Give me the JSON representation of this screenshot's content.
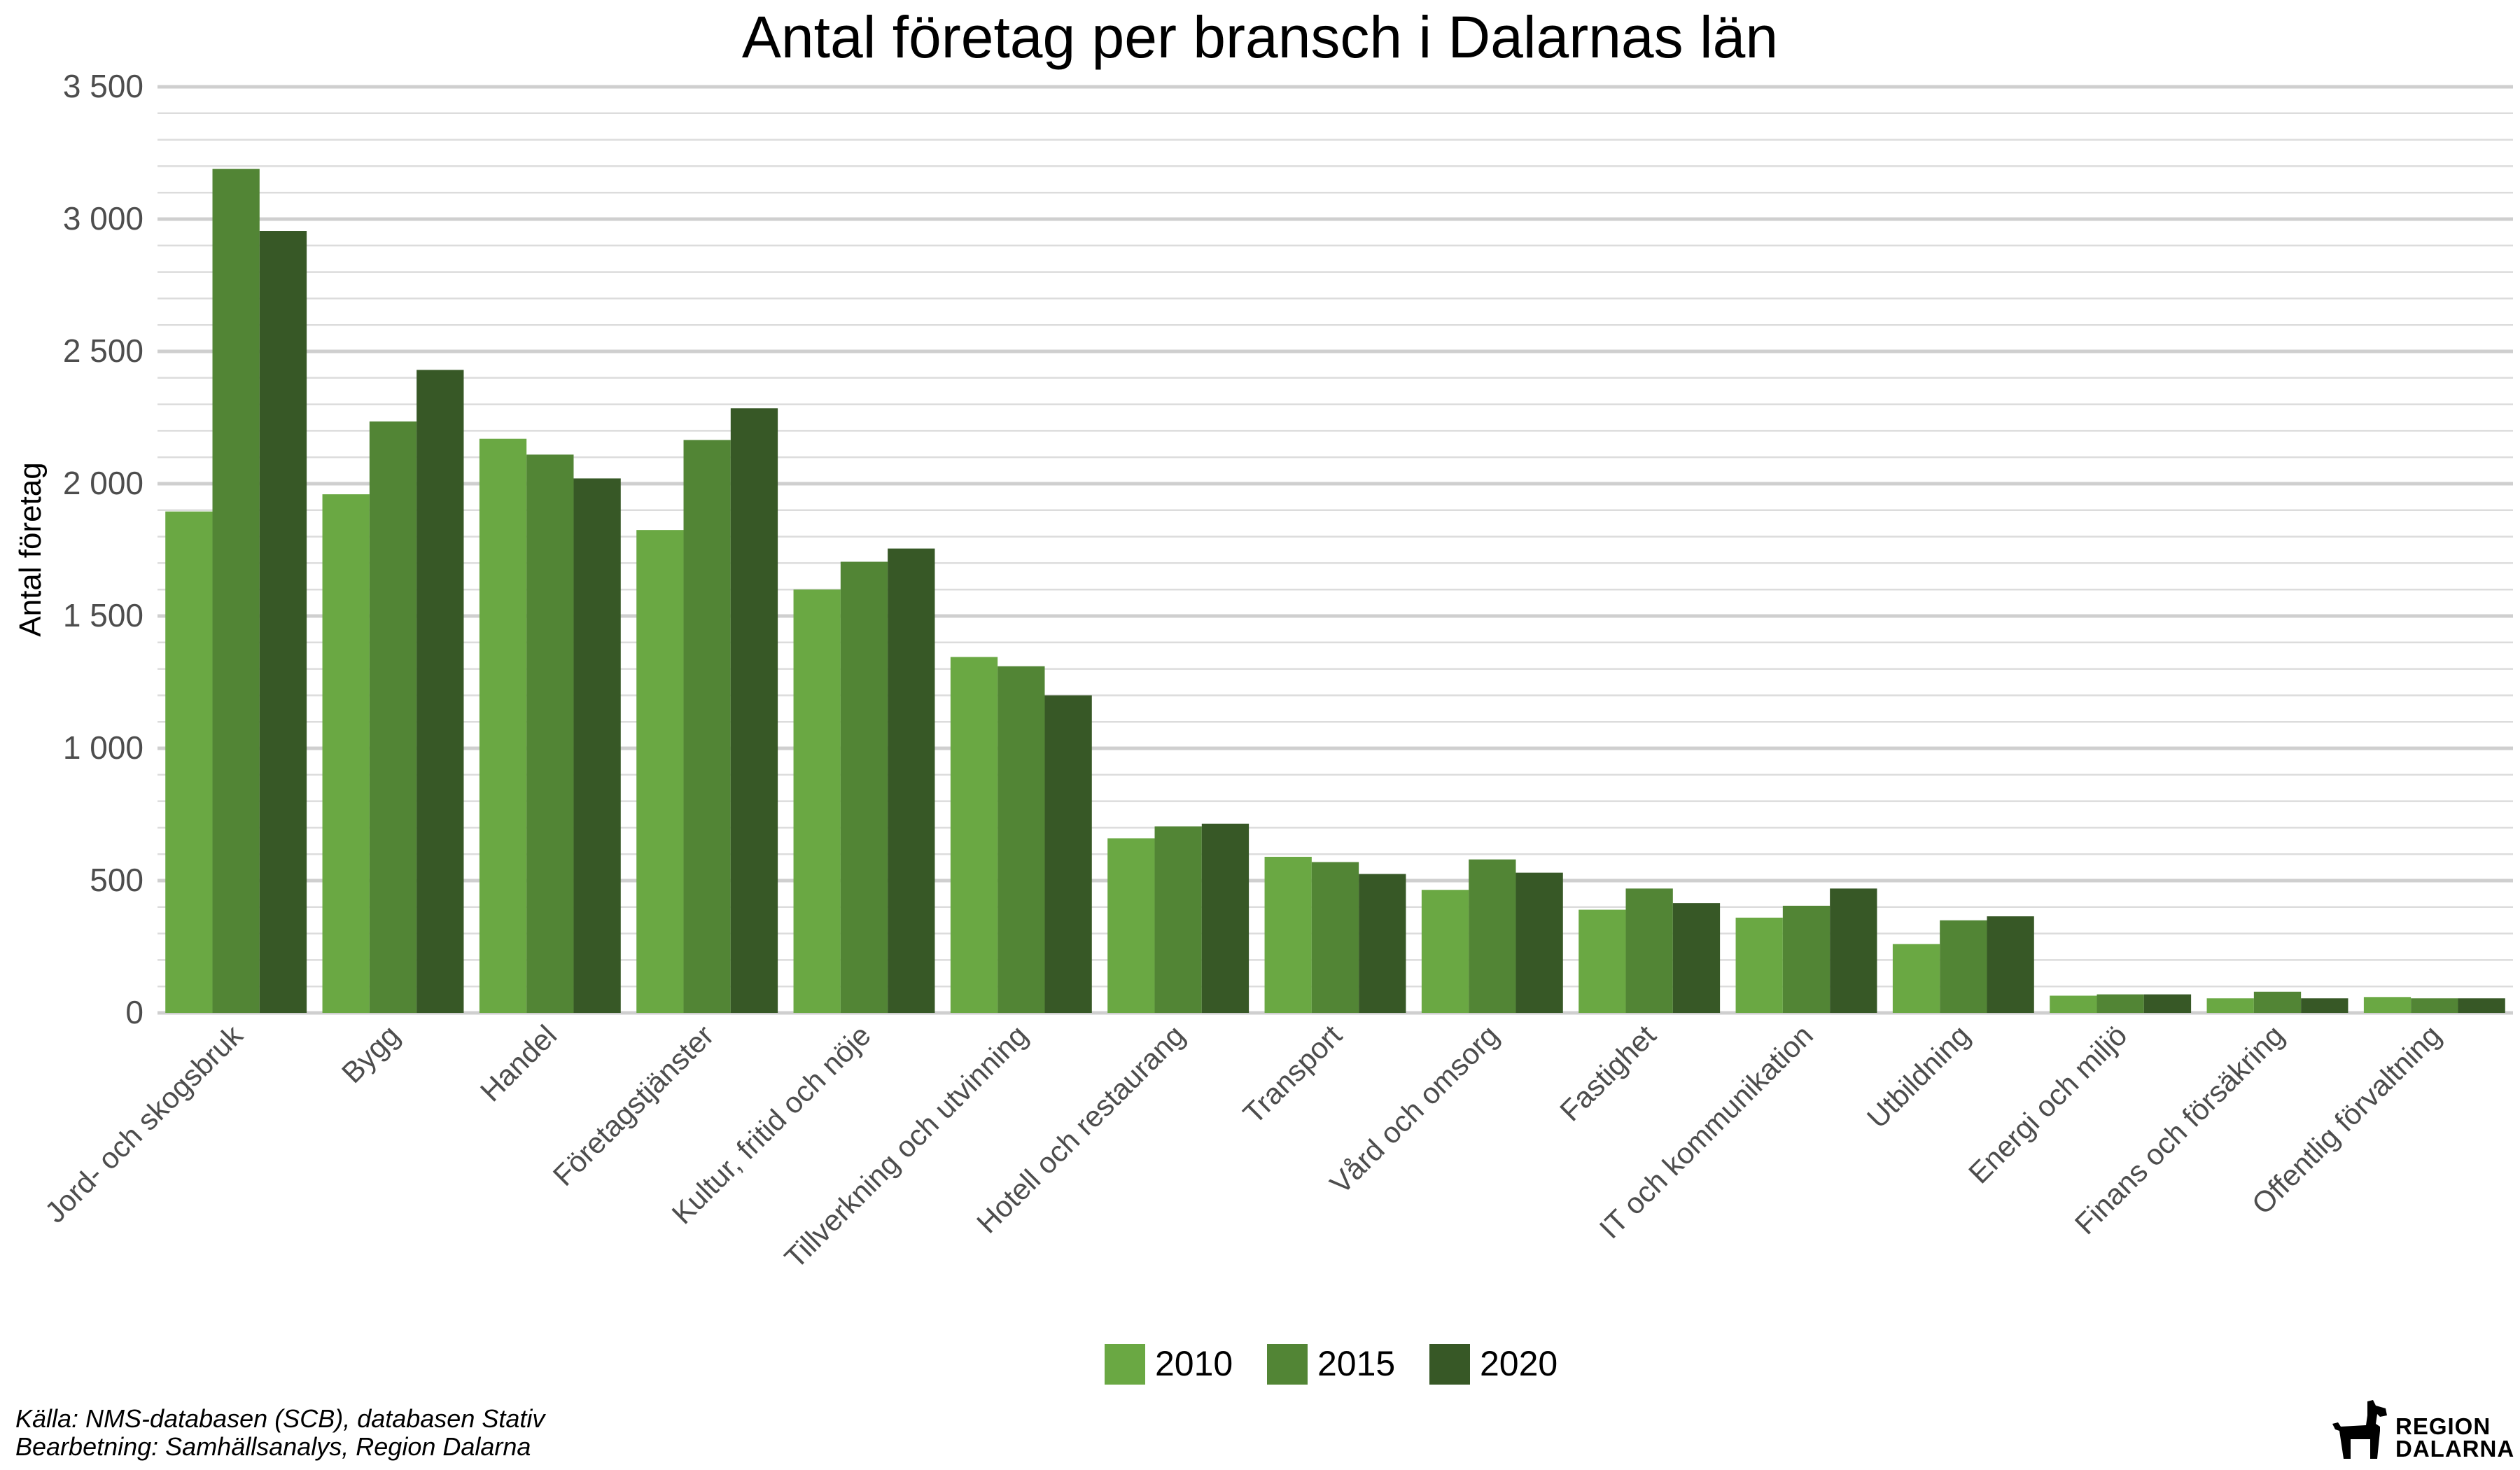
{
  "chart_data": {
    "type": "bar",
    "title": "Antal företag per bransch i Dalarnas län",
    "ylabel": "Antal företag",
    "xlabel": "",
    "ylim": [
      0,
      3500
    ],
    "yticks": [
      0,
      500,
      1000,
      1500,
      2000,
      2500,
      3000,
      3500
    ],
    "ytick_labels": [
      "0",
      "500",
      "1 000",
      "1 500",
      "2 000",
      "2 500",
      "3 000",
      "3 500"
    ],
    "legend_position": "bottom",
    "categories": [
      "Jord- och skogsbruk",
      "Bygg",
      "Handel",
      "Företagstjänster",
      "Kultur, fritid och nöje",
      "Tillverkning och utvinning",
      "Hotell och restaurang",
      "Transport",
      "Vård och omsorg",
      "Fastighet",
      "IT och kommunikation",
      "Utbildning",
      "Energi och miljö",
      "Finans och försäkring",
      "Offentlig förvaltning"
    ],
    "series": [
      {
        "name": "2010",
        "color": "#6aa843",
        "values": [
          1895,
          1960,
          2170,
          1825,
          1600,
          1345,
          660,
          590,
          465,
          390,
          360,
          260,
          65,
          55,
          60
        ]
      },
      {
        "name": "2015",
        "color": "#528535",
        "values": [
          3190,
          2235,
          2110,
          2165,
          1705,
          1310,
          705,
          570,
          580,
          470,
          405,
          350,
          70,
          80,
          55
        ]
      },
      {
        "name": "2020",
        "color": "#375826",
        "values": [
          2955,
          2430,
          2020,
          2285,
          1755,
          1200,
          715,
          525,
          530,
          415,
          470,
          365,
          70,
          55,
          55
        ]
      }
    ],
    "grid": true
  },
  "footer": {
    "source_line1": "Källa: NMS-databasen (SCB), databasen Stativ",
    "source_line2": "Bearbetning: Samhällsanalys, Region Dalarna"
  },
  "logo": {
    "line1": "REGION",
    "line2": "DALARNA",
    "icon": "dala-horse-icon"
  }
}
